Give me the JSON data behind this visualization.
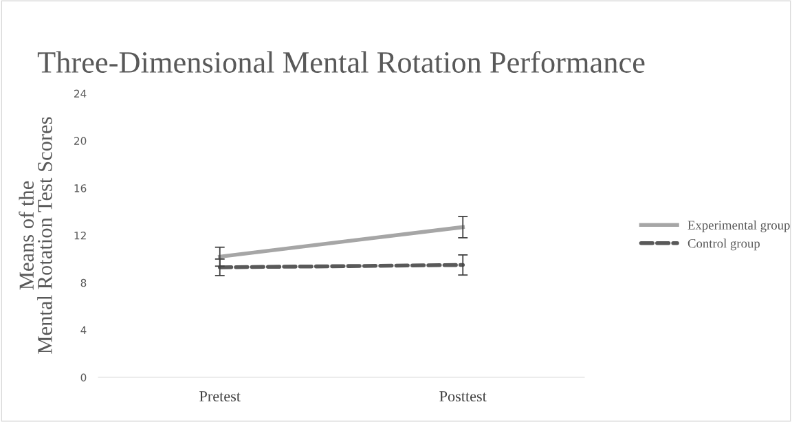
{
  "chart_data": {
    "type": "line",
    "title": "Three-Dimensional Mental Rotation Performance",
    "ylabel": "Means of the\nMental Rotation Test Scores",
    "categories": [
      "Pretest",
      "Posttest"
    ],
    "series": [
      {
        "name": "Experimental group",
        "color": "#a6a6a6",
        "values": [
          10.2,
          12.7
        ],
        "errors": [
          0.8,
          0.9
        ],
        "line_style": "solid"
      },
      {
        "name": "Control group",
        "color": "#595959",
        "values": [
          9.3,
          9.5
        ],
        "errors": [
          0.7,
          0.85
        ],
        "line_style": "dashed"
      }
    ],
    "ylim": [
      0,
      24
    ],
    "yticks": [
      0,
      4,
      8,
      12,
      16,
      20,
      24
    ],
    "grid": false,
    "legend": "right",
    "marker": "none"
  }
}
